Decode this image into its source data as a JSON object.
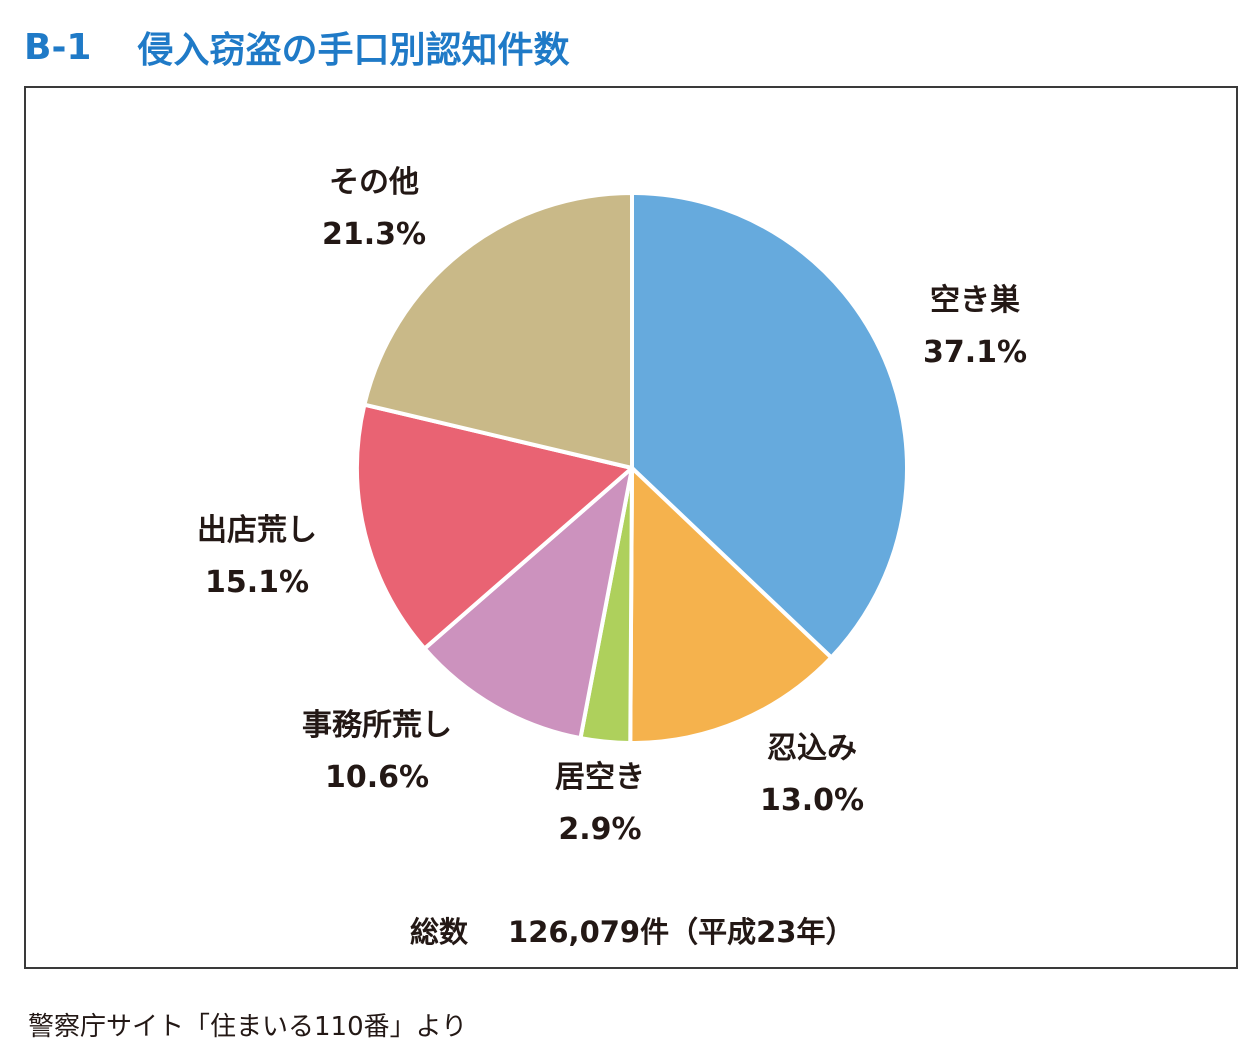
{
  "header": {
    "figure_no": "B-1",
    "title": "侵入窃盗の手口別認知件数"
  },
  "chart_data": {
    "type": "pie",
    "title": "侵入窃盗の手口別認知件数",
    "categories": [
      "空き巣",
      "忍込み",
      "居空き",
      "事務所荒し",
      "出店荒し",
      "その他"
    ],
    "values": [
      37.1,
      13.0,
      2.9,
      10.6,
      15.1,
      21.3
    ],
    "value_labels": [
      "37.1%",
      "13.0%",
      "2.9%",
      "10.6%",
      "15.1%",
      "21.3%"
    ],
    "unit": "%",
    "colors": [
      "#66aadd",
      "#f5b24d",
      "#aed05c",
      "#cc92be",
      "#e96373",
      "#c9b988"
    ],
    "start_angle": "12 o'clock",
    "direction": "clockwise",
    "legend": "none",
    "grid": false
  },
  "total": {
    "label": "総数",
    "value": "126,079件（平成23年）"
  },
  "source": "警察庁サイト「住まいる110番」より"
}
